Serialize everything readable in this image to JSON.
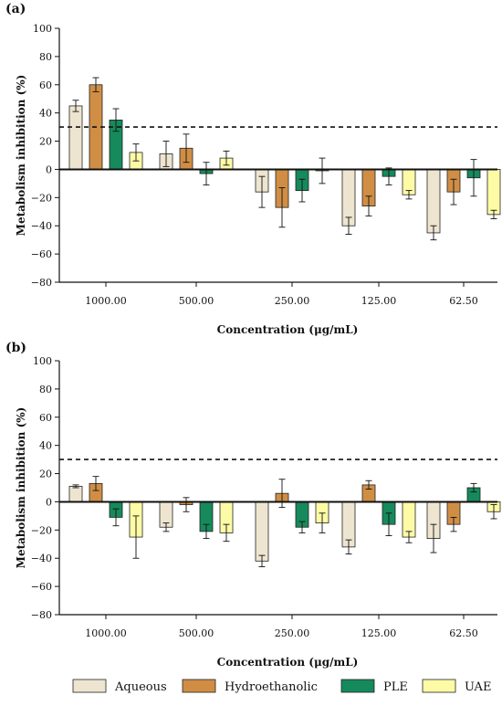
{
  "chart_data": [
    {
      "type": "bar",
      "panel_label": "(a)",
      "categories": [
        "1000.00",
        "500.00",
        "250.00",
        "125.00",
        "62.50"
      ],
      "xlabel": "Concentration (μg/mL)",
      "ylabel": "Metabolism inhibition (%)",
      "ylim": [
        -80,
        100
      ],
      "yticks": [
        -80,
        -60,
        -40,
        -20,
        0,
        20,
        40,
        60,
        80,
        100
      ],
      "ytick_labels": [
        "−80",
        "−60",
        "−40",
        "−20",
        "0",
        "20",
        "40",
        "60",
        "80",
        "100"
      ],
      "reference_line": 30,
      "series": [
        {
          "name": "Aqueous",
          "values": [
            45,
            11,
            -16,
            -40,
            -45
          ],
          "errors": [
            4,
            9,
            11,
            6,
            5
          ]
        },
        {
          "name": "Hydroethanolic",
          "values": [
            60,
            15,
            -27,
            -26,
            -16
          ],
          "errors": [
            5,
            10,
            14,
            7,
            9
          ]
        },
        {
          "name": "PLE",
          "values": [
            35,
            -3,
            -15,
            -5,
            -6
          ],
          "errors": [
            8,
            8,
            8,
            6,
            13
          ]
        },
        {
          "name": "UAE",
          "values": [
            12,
            8,
            -1,
            -18,
            -32
          ],
          "errors": [
            6,
            5,
            9,
            3,
            3
          ]
        }
      ]
    },
    {
      "type": "bar",
      "panel_label": "(b)",
      "categories": [
        "1000.00",
        "500.00",
        "250.00",
        "125.00",
        "62.50"
      ],
      "xlabel": "Concentration (μg/mL)",
      "ylabel": "Metabolism inhibition (%)",
      "ylim": [
        -80,
        100
      ],
      "yticks": [
        -80,
        -60,
        -40,
        -20,
        0,
        20,
        40,
        60,
        80,
        100
      ],
      "ytick_labels": [
        "−80",
        "−60",
        "−40",
        "−20",
        "0",
        "20",
        "40",
        "60",
        "80",
        "100"
      ],
      "reference_line": 30,
      "series": [
        {
          "name": "Aqueous",
          "values": [
            11,
            -18,
            -42,
            -32,
            -26
          ],
          "errors": [
            1,
            3,
            4,
            5,
            10
          ]
        },
        {
          "name": "Hydroethanolic",
          "values": [
            13,
            -2,
            6,
            12,
            -16
          ],
          "errors": [
            5,
            5,
            10,
            3,
            5
          ]
        },
        {
          "name": "PLE",
          "values": [
            -11,
            -21,
            -18,
            -16,
            10
          ],
          "errors": [
            6,
            5,
            4,
            8,
            3
          ]
        },
        {
          "name": "UAE",
          "values": [
            -25,
            -22,
            -15,
            -25,
            -7
          ],
          "errors": [
            15,
            6,
            7,
            4,
            5
          ]
        }
      ]
    }
  ],
  "legend": {
    "position": "bottom",
    "items": [
      {
        "label": "Aqueous",
        "color": "#eee5d0"
      },
      {
        "label": "Hydroethanolic",
        "color": "#d08e45"
      },
      {
        "label": "PLE",
        "color": "#168a5c"
      },
      {
        "label": "UAE",
        "color": "#fefba6"
      }
    ]
  }
}
